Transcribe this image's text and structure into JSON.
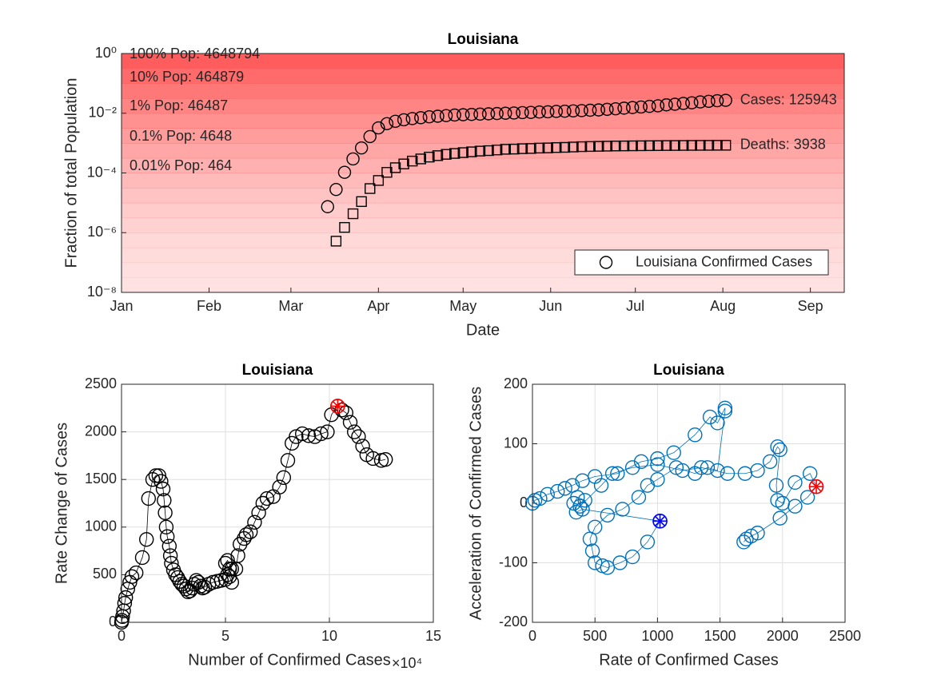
{
  "chart_data": [
    {
      "type": "scatter",
      "title": "Louisiana",
      "xlabel": "Date",
      "ylabel": "Fraction of total Population",
      "yscale": "log",
      "grid": false,
      "legend": "southeast",
      "shading_color": "#ff5a5a",
      "xlim": [
        0,
        256
      ],
      "xticks": [
        {
          "value": 0,
          "label": "Jan"
        },
        {
          "value": 31,
          "label": "Feb"
        },
        {
          "value": 60,
          "label": "Mar"
        },
        {
          "value": 91,
          "label": "Apr"
        },
        {
          "value": 121,
          "label": "May"
        },
        {
          "value": 152,
          "label": "Jun"
        },
        {
          "value": 182,
          "label": "Jul"
        },
        {
          "value": 213,
          "label": "Aug"
        },
        {
          "value": 244,
          "label": "Sep"
        }
      ],
      "ylim": [
        1e-08,
        1
      ],
      "yticks": [
        {
          "value": 1e-08,
          "label": "10⁻⁸"
        },
        {
          "value": 1e-06,
          "label": "10⁻⁶"
        },
        {
          "value": 0.0001,
          "label": "10⁻⁴"
        },
        {
          "value": 0.01,
          "label": "10⁻²"
        },
        {
          "value": 1,
          "label": "10⁰"
        }
      ],
      "population_labels": [
        "100% Pop: 4648794",
        "10% Pop: 464879",
        "1% Pop: 46487",
        "0.1% Pop: 4648",
        "0.01% Pop: 464"
      ],
      "series": [
        {
          "name": "Louisiana Confirmed Cases",
          "color": "#000000",
          "marker": "circle",
          "end_label": "Cases: 125943",
          "x": [
            73,
            76,
            79,
            82,
            85,
            88,
            91,
            94,
            97,
            100,
            103,
            106,
            109,
            112,
            115,
            118,
            121,
            124,
            127,
            130,
            133,
            136,
            139,
            142,
            145,
            148,
            151,
            154,
            157,
            160,
            163,
            166,
            169,
            172,
            175,
            178,
            181,
            184,
            187,
            190,
            193,
            196,
            199,
            202,
            205,
            208,
            211,
            214
          ],
          "values": [
            7.4e-06,
            2.8e-05,
            0.000105,
            0.000295,
            0.00069,
            0.00166,
            0.00324,
            0.00447,
            0.00537,
            0.00603,
            0.00661,
            0.00708,
            0.00759,
            0.00794,
            0.00832,
            0.00871,
            0.00891,
            0.00912,
            0.00933,
            0.00955,
            0.00977,
            0.01,
            0.0102,
            0.0105,
            0.0107,
            0.011,
            0.0112,
            0.0115,
            0.0117,
            0.012,
            0.0123,
            0.0126,
            0.0129,
            0.0135,
            0.0141,
            0.0148,
            0.0155,
            0.0162,
            0.017,
            0.0178,
            0.0191,
            0.02,
            0.0214,
            0.0224,
            0.024,
            0.0251,
            0.0263,
            0.0271
          ]
        },
        {
          "color": "#000000",
          "marker": "square",
          "end_label": "Deaths: 3938",
          "x": [
            76,
            79,
            82,
            85,
            88,
            91,
            94,
            97,
            100,
            103,
            106,
            109,
            112,
            115,
            118,
            121,
            124,
            127,
            130,
            133,
            136,
            139,
            142,
            145,
            148,
            151,
            154,
            157,
            160,
            163,
            166,
            169,
            172,
            175,
            178,
            181,
            184,
            187,
            190,
            193,
            196,
            199,
            202,
            205,
            208,
            211,
            214
          ],
          "values": [
            5.2e-07,
            1.5e-06,
            4.3e-06,
            1.1e-05,
            3e-05,
            5.6e-05,
            0.000105,
            0.00015,
            0.0002,
            0.00025,
            0.000295,
            0.00034,
            0.00038,
            0.00042,
            0.00045,
            0.00048,
            0.00051,
            0.00054,
            0.00056,
            0.00059,
            0.00062,
            0.00063,
            0.00065,
            0.00066,
            0.00068,
            0.00069,
            0.00071,
            0.00072,
            0.00074,
            0.00076,
            0.00077,
            0.00078,
            0.00079,
            0.0008,
            0.000805,
            0.00081,
            0.000815,
            0.00082,
            0.000825,
            0.00083,
            0.000832,
            0.000835,
            0.000838,
            0.00084,
            0.000842,
            0.000845,
            0.000847
          ]
        }
      ]
    },
    {
      "type": "scatter",
      "title": "Louisiana",
      "xlabel": "Number of Confirmed Cases",
      "x_multiplier": "×10⁴",
      "ylabel": "Rate Change of Cases",
      "grid": true,
      "xlim": [
        0,
        15
      ],
      "xticks": [
        0,
        5,
        10,
        15
      ],
      "ylim": [
        0,
        2500
      ],
      "yticks": [
        0,
        500,
        1000,
        1500,
        2000,
        2500
      ],
      "series": [
        {
          "color": "#000000",
          "marker": "circle",
          "line": true,
          "x": [
            0,
            0.02,
            0.05,
            0.1,
            0.15,
            0.2,
            0.3,
            0.4,
            0.5,
            0.7,
            1.0,
            1.2,
            1.3,
            1.5,
            1.65,
            1.8,
            1.9,
            2.0,
            2.05,
            2.1,
            2.15,
            2.2,
            2.3,
            2.35,
            2.4,
            2.5,
            2.6,
            2.7,
            2.8,
            2.9,
            3.0,
            3.1,
            3.2,
            3.3,
            3.4,
            3.5,
            3.6,
            3.7,
            3.8,
            3.9,
            4.0,
            4.2,
            4.4,
            4.6,
            4.8,
            5.0,
            5.1,
            5.2,
            5.0,
            5.1,
            5.3,
            5.2,
            5.3,
            5.5,
            5.6,
            5.7,
            5.9,
            6.0,
            6.2,
            6.4,
            6.6,
            6.8,
            7.0,
            7.3,
            7.6,
            7.8,
            8.0,
            8.2,
            8.4,
            8.7,
            9.0,
            9.3,
            9.6,
            9.9,
            10.1,
            10.4,
            10.6,
            10.8,
            11.0,
            11.2,
            11.4,
            11.6,
            11.8,
            12.1,
            12.5,
            12.7
          ],
          "values": [
            0,
            20,
            60,
            120,
            200,
            260,
            350,
            420,
            480,
            520,
            680,
            870,
            1300,
            1500,
            1540,
            1540,
            1480,
            1400,
            1280,
            1150,
            1000,
            900,
            800,
            700,
            620,
            550,
            500,
            470,
            430,
            400,
            380,
            350,
            320,
            330,
            360,
            400,
            440,
            420,
            380,
            360,
            370,
            400,
            420,
            430,
            440,
            450,
            500,
            560,
            620,
            650,
            560,
            480,
            420,
            560,
            700,
            820,
            880,
            920,
            950,
            1050,
            1150,
            1250,
            1300,
            1320,
            1420,
            1520,
            1700,
            1880,
            1950,
            1980,
            1960,
            1950,
            1980,
            2000,
            2180,
            2270,
            2230,
            2200,
            2100,
            2000,
            1950,
            1850,
            1760,
            1720,
            1700,
            1710
          ]
        }
      ],
      "highlights": [
        {
          "x": 10.4,
          "y": 2270,
          "color": "#ff0000"
        }
      ]
    },
    {
      "type": "scatter",
      "title": "Louisiana",
      "xlabel": "Rate of Confirmed Cases",
      "ylabel": "Acceleration of Confirmed Cases",
      "grid": true,
      "xlim": [
        0,
        2500
      ],
      "xticks": [
        0,
        500,
        1000,
        1500,
        2000,
        2500
      ],
      "ylim": [
        -200,
        200
      ],
      "yticks": [
        -200,
        -100,
        0,
        100,
        200
      ],
      "series": [
        {
          "color": "#0072bd",
          "marker": "circle",
          "line": true,
          "x": [
            0,
            20,
            60,
            120,
            200,
            260,
            320,
            400,
            500,
            680,
            870,
            1000,
            1130,
            1300,
            1420,
            1480,
            1540,
            1540,
            1480,
            1400,
            1300,
            1150,
            1000,
            920,
            850,
            720,
            600,
            500,
            460,
            480,
            500,
            560,
            600,
            700,
            800,
            920,
            1020,
            400,
            350,
            330,
            360,
            420,
            380,
            550,
            640,
            800,
            1000,
            1200,
            1350,
            1560,
            1700,
            1800,
            1900,
            1960,
            1980,
            1950,
            1960,
            2000,
            2100,
            2220,
            2270,
            2200,
            2100,
            1980,
            1800,
            1750,
            1710,
            1690
          ],
          "values": [
            0,
            5,
            8,
            15,
            20,
            25,
            30,
            38,
            45,
            50,
            70,
            75,
            85,
            115,
            145,
            135,
            160,
            155,
            55,
            60,
            50,
            60,
            40,
            30,
            10,
            -10,
            -20,
            -40,
            -60,
            -80,
            -100,
            -105,
            -108,
            -100,
            -90,
            -65,
            -30,
            -10,
            -15,
            0,
            10,
            5,
            -5,
            30,
            50,
            60,
            65,
            55,
            60,
            50,
            50,
            55,
            70,
            95,
            90,
            30,
            5,
            0,
            35,
            50,
            28,
            10,
            -5,
            -25,
            -50,
            -55,
            -60,
            -65
          ]
        }
      ],
      "highlights": [
        {
          "x": 2270,
          "y": 28,
          "color": "#ff0000"
        },
        {
          "x": 1020,
          "y": -30,
          "color": "#0000ff"
        }
      ]
    }
  ]
}
